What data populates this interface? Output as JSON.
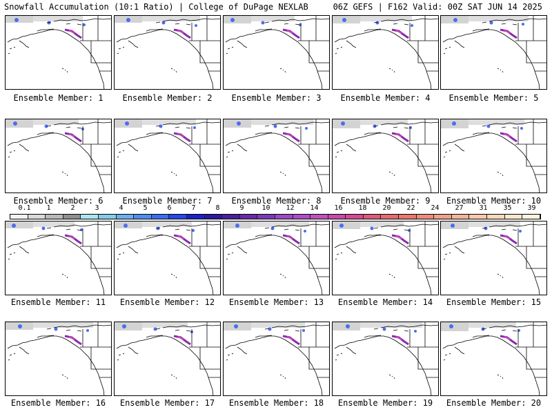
{
  "header": {
    "left": "Snowfall Accumulation (10:1 Ratio) | College of DuPage NEXLAB",
    "right": "06Z GEFS | F162 Valid: 00Z SAT JUN 14 2025"
  },
  "member_label_prefix": "Ensemble Member: ",
  "members": [
    1,
    2,
    3,
    4,
    5,
    6,
    7,
    8,
    9,
    10,
    11,
    12,
    13,
    14,
    15,
    16,
    17,
    18,
    19,
    20
  ],
  "colorbar": {
    "tick_labels": [
      "0.1",
      "1",
      "2",
      "3",
      "4",
      "5",
      "6",
      "7",
      "8",
      "9",
      "10",
      "12",
      "14",
      "16",
      "18",
      "20",
      "22",
      "24",
      "27",
      "31",
      "35",
      "39"
    ],
    "colors": [
      "#f2f2f2",
      "#d9d9d9",
      "#b8b8b8",
      "#8f8f8f",
      "#a8e6ef",
      "#86cbe8",
      "#6aaef0",
      "#4d8ff0",
      "#3b6cf0",
      "#2747e8",
      "#1c22c8",
      "#2a1aa0",
      "#4a1f9a",
      "#6a2aa8",
      "#7a3ab8",
      "#9a4ac4",
      "#b04cc8",
      "#c050c0",
      "#c84aa8",
      "#d24a90",
      "#dc5a7c",
      "#e26a72",
      "#e6786c",
      "#ec8c78",
      "#f0a088",
      "#f4b49a",
      "#f8c8aa",
      "#fad8bc",
      "#fce6cc",
      "#fef2dc"
    ]
  },
  "legend_colors": {
    "snow_light": "#c8c8c8",
    "snow_blue": "#4a6ef0",
    "snow_purple": "#8a2ab0",
    "snow_pink": "#d04ab0"
  }
}
